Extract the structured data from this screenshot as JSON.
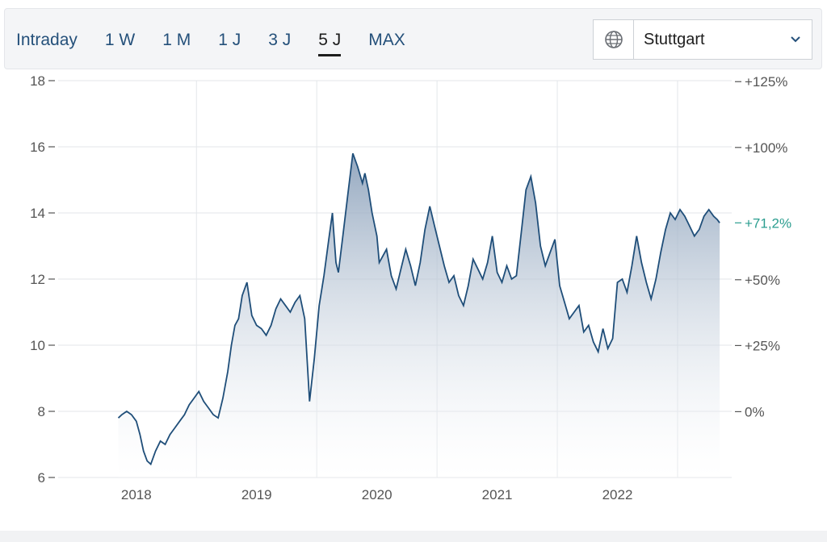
{
  "toolbar": {
    "tabs": [
      {
        "label": "Intraday"
      },
      {
        "label": "1 W"
      },
      {
        "label": "1 M"
      },
      {
        "label": "1 J"
      },
      {
        "label": "3 J"
      },
      {
        "label": "5 J"
      },
      {
        "label": "MAX"
      }
    ],
    "active_tab": "5 J",
    "exchange": {
      "label": "Stuttgart",
      "icon": "globe-icon",
      "dropdown_icon": "chevron-down-icon"
    }
  },
  "colors": {
    "line": "#1f4e79",
    "area_top": "#8ea3bc",
    "area_bottom": "#ffffff",
    "grid": "#e3e6ea",
    "current_label": "#2a9d8f",
    "tab_text": "#24507a"
  },
  "chart_data": {
    "type": "area",
    "x_ticks": [
      "2018",
      "2019",
      "2020",
      "2021",
      "2022"
    ],
    "y_ticks": [
      "6",
      "8",
      "10",
      "12",
      "14",
      "16",
      "18"
    ],
    "y_range": [
      6,
      18
    ],
    "x_range": [
      2017.35,
      2022.95
    ],
    "y2_ticks": [
      {
        "label": "0%",
        "value": 7.99
      },
      {
        "label": "+25%",
        "value": 9.99
      },
      {
        "label": "+50%",
        "value": 11.98
      },
      {
        "label": "+100%",
        "value": 15.98
      },
      {
        "label": "+125%",
        "value": 17.97
      }
    ],
    "current": {
      "label": "+71,2%",
      "value": 13.7
    },
    "grid": true,
    "series": [
      {
        "x": [
          2017.85,
          2017.88,
          2017.92,
          2017.96,
          2018.0,
          2018.03,
          2018.06,
          2018.09,
          2018.12,
          2018.16,
          2018.2,
          2018.24,
          2018.28,
          2018.32,
          2018.36,
          2018.4,
          2018.44,
          2018.48,
          2018.52,
          2018.56,
          2018.6,
          2018.64,
          2018.68,
          2018.72,
          2018.76,
          2018.79,
          2018.82,
          2018.85,
          2018.88,
          2018.92,
          2018.96,
          2019.0,
          2019.04,
          2019.08,
          2019.12,
          2019.16,
          2019.2,
          2019.24,
          2019.28,
          2019.32,
          2019.36,
          2019.4,
          2019.44,
          2019.48,
          2019.52,
          2019.56,
          2019.6,
          2019.63,
          2019.64,
          2019.66,
          2019.68,
          2019.72,
          2019.76,
          2019.8,
          2019.84,
          2019.88,
          2019.9,
          2019.93,
          2019.96,
          2020.0,
          2020.02,
          2020.05,
          2020.08,
          2020.12,
          2020.16,
          2020.2,
          2020.24,
          2020.28,
          2020.32,
          2020.36,
          2020.4,
          2020.44,
          2020.48,
          2020.52,
          2020.56,
          2020.6,
          2020.64,
          2020.68,
          2020.72,
          2020.76,
          2020.8,
          2020.84,
          2020.88,
          2020.92,
          2020.96,
          2021.0,
          2021.04,
          2021.08,
          2021.12,
          2021.16,
          2021.2,
          2021.24,
          2021.28,
          2021.32,
          2021.36,
          2021.4,
          2021.44,
          2021.48,
          2021.52,
          2021.56,
          2021.6,
          2021.64,
          2021.68,
          2021.72,
          2021.76,
          2021.8,
          2021.84,
          2021.88,
          2021.92,
          2021.96,
          2022.0,
          2022.04,
          2022.08,
          2022.12,
          2022.16,
          2022.2,
          2022.24,
          2022.28,
          2022.32,
          2022.36,
          2022.4,
          2022.44,
          2022.48,
          2022.52,
          2022.56,
          2022.6,
          2022.64,
          2022.68,
          2022.72,
          2022.76,
          2022.8,
          2022.83,
          2022.85
        ],
        "y": [
          7.8,
          7.9,
          8.0,
          7.9,
          7.7,
          7.3,
          6.8,
          6.5,
          6.4,
          6.8,
          7.1,
          7.0,
          7.3,
          7.5,
          7.7,
          7.9,
          8.2,
          8.4,
          8.6,
          8.3,
          8.1,
          7.9,
          7.8,
          8.4,
          9.2,
          10.0,
          10.6,
          10.8,
          11.5,
          11.9,
          10.9,
          10.6,
          10.5,
          10.3,
          10.6,
          11.1,
          11.4,
          11.2,
          11.0,
          11.3,
          11.5,
          10.8,
          8.3,
          9.6,
          11.2,
          12.1,
          13.2,
          14.0,
          13.5,
          12.5,
          12.2,
          13.4,
          14.6,
          15.8,
          15.4,
          14.9,
          15.2,
          14.7,
          14.0,
          13.3,
          12.5,
          12.7,
          12.9,
          12.1,
          11.7,
          12.3,
          12.9,
          12.4,
          11.8,
          12.5,
          13.5,
          14.2,
          13.6,
          13.0,
          12.4,
          11.9,
          12.1,
          11.5,
          11.2,
          11.8,
          12.6,
          12.3,
          12.0,
          12.5,
          13.3,
          12.2,
          11.9,
          12.4,
          12.0,
          12.1,
          13.4,
          14.7,
          15.1,
          14.3,
          13.0,
          12.4,
          12.8,
          13.2,
          11.8,
          11.3,
          10.8,
          11.0,
          11.2,
          10.4,
          10.6,
          10.1,
          9.8,
          10.5,
          9.9,
          10.2,
          11.9,
          12.0,
          11.6,
          12.4,
          13.3,
          12.5,
          11.9,
          11.4,
          12.0,
          12.8,
          13.5,
          14.0,
          13.8,
          14.1,
          13.9,
          13.6,
          13.3,
          13.5,
          13.9,
          14.1,
          13.9,
          13.8,
          13.7
        ]
      }
    ]
  }
}
